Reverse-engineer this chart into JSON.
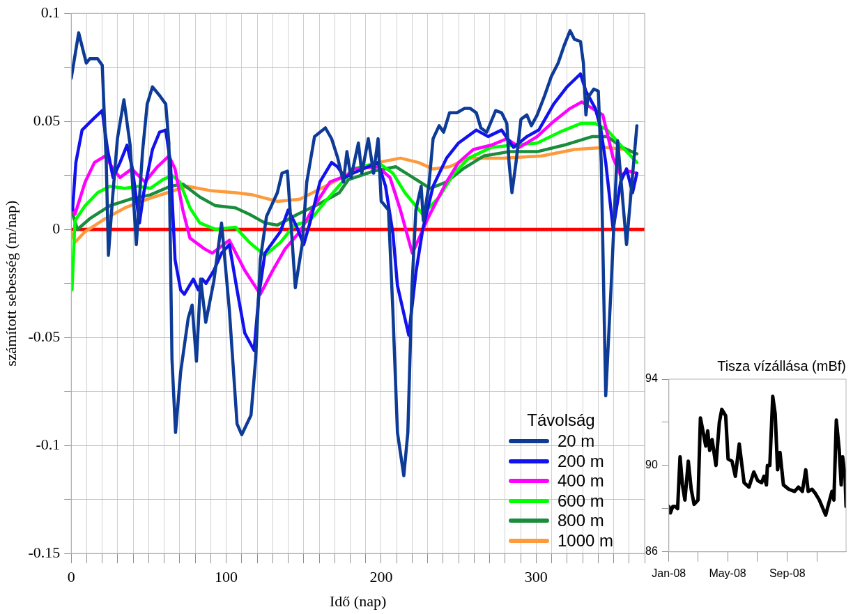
{
  "chart_data": [
    {
      "type": "line",
      "xlabel": "Idő (nap)",
      "ylabel": "számított sebesség (m/nap)",
      "legend_title": "Távolság",
      "legend": "bottom right",
      "grid": true,
      "marker": "none",
      "line_style": "solid",
      "xlim": [
        0,
        370
      ],
      "xticks": [
        0,
        {
          "value": 10,
          "label": null
        },
        {
          "value": 20,
          "label": null
        },
        {
          "value": 30,
          "label": null
        },
        {
          "value": 40,
          "label": null
        },
        {
          "value": 50,
          "label": null
        },
        {
          "value": 60,
          "label": null
        },
        {
          "value": 70,
          "label": null
        },
        {
          "value": 80,
          "label": null
        },
        {
          "value": 90,
          "label": null
        },
        100,
        {
          "value": 110,
          "label": null
        },
        {
          "value": 120,
          "label": null
        },
        {
          "value": 130,
          "label": null
        },
        {
          "value": 140,
          "label": null
        },
        {
          "value": 150,
          "label": null
        },
        {
          "value": 160,
          "label": null
        },
        {
          "value": 170,
          "label": null
        },
        {
          "value": 180,
          "label": null
        },
        {
          "value": 190,
          "label": null
        },
        200,
        {
          "value": 210,
          "label": null
        },
        {
          "value": 220,
          "label": null
        },
        {
          "value": 230,
          "label": null
        },
        {
          "value": 240,
          "label": null
        },
        {
          "value": 250,
          "label": null
        },
        {
          "value": 260,
          "label": null
        },
        {
          "value": 270,
          "label": null
        },
        {
          "value": 280,
          "label": null
        },
        {
          "value": 290,
          "label": null
        },
        300,
        {
          "value": 310,
          "label": null
        },
        {
          "value": 320,
          "label": null
        },
        {
          "value": 330,
          "label": null
        },
        {
          "value": 340,
          "label": null
        },
        {
          "value": 350,
          "label": null
        },
        {
          "value": 360,
          "label": null
        },
        {
          "value": 370,
          "label": null
        }
      ],
      "ylim": [
        -0.15,
        0.1
      ],
      "yticks": [
        -0.15,
        {
          "value": -0.125,
          "label": null
        },
        -0.1,
        {
          "value": -0.075,
          "label": null
        },
        -0.05,
        {
          "value": -0.025,
          "label": null
        },
        0,
        {
          "value": 0.025,
          "label": null
        },
        0.05,
        {
          "value": 0.075,
          "label": null
        },
        0.1
      ],
      "ref_lines": [
        {
          "axis": "y",
          "value": 0,
          "color": "#ff0000"
        }
      ],
      "series": [
        {
          "name": "20 m",
          "color": "#0d3b96",
          "x": [
            0,
            4.8,
            9.7,
            12,
            17,
            20,
            22.6,
            24,
            26.6,
            29.8,
            34,
            38,
            42,
            46,
            49,
            52.4,
            57,
            61,
            63,
            65,
            67.3,
            70.6,
            75.5,
            78,
            80.8,
            83.5,
            86.8,
            92,
            97,
            102,
            107,
            110,
            116,
            119,
            122,
            126,
            133,
            136,
            139.5,
            144.6,
            149,
            152,
            157,
            164,
            168,
            172,
            175.6,
            177.9,
            180.5,
            185.3,
            187.5,
            191.7,
            195.1,
            198,
            200,
            201.3,
            204.7,
            207.5,
            210.5,
            214.6,
            217.2,
            219.9,
            222.4,
            225.8,
            227.2,
            230.7,
            233.5,
            237.4,
            240.3,
            244.1,
            248.9,
            253.7,
            257.5,
            261.4,
            264.3,
            268.1,
            273.9,
            277.7,
            281.1,
            282.5,
            284.4,
            287,
            290.2,
            294,
            296.9,
            300.7,
            305.5,
            309.9,
            314.2,
            318,
            321.9,
            324.7,
            328.6,
            330.5,
            332.1,
            333.4,
            337.2,
            340.1,
            342,
            344.9,
            348.4,
            352.6,
            358.3,
            365
          ],
          "values": [
            0.07,
            0.091,
            0.077,
            0.079,
            0.079,
            0.076,
            0.031,
            -0.012,
            0.014,
            0.042,
            0.06,
            0.039,
            -0.007,
            0.036,
            0.058,
            0.066,
            0.062,
            0.058,
            0.04,
            -0.06,
            -0.094,
            -0.066,
            -0.041,
            -0.035,
            -0.061,
            -0.023,
            -0.043,
            -0.024,
            0.003,
            -0.037,
            -0.09,
            -0.095,
            -0.086,
            -0.06,
            -0.014,
            0.006,
            0.017,
            0.026,
            0.027,
            -0.027,
            -0.007,
            0.022,
            0.043,
            0.047,
            0.042,
            0.033,
            0.022,
            0.036,
            0.024,
            0.04,
            0.026,
            0.042,
            0.026,
            0.042,
            0.013,
            0.012,
            0.009,
            -0.037,
            -0.094,
            -0.114,
            -0.094,
            -0.026,
            0.009,
            0.02,
            0.004,
            0.02,
            0.042,
            0.048,
            0.045,
            0.054,
            0.054,
            0.056,
            0.056,
            0.054,
            0.047,
            0.045,
            0.055,
            0.054,
            0.049,
            0.031,
            0.017,
            0.031,
            0.051,
            0.053,
            0.048,
            0.053,
            0.062,
            0.071,
            0.077,
            0.085,
            0.092,
            0.088,
            0.087,
            0.077,
            0.053,
            0.061,
            0.065,
            0.064,
            0.031,
            -0.077,
            -0.026,
            0.041,
            -0.007,
            0.048
          ]
        },
        {
          "name": "200 m",
          "color": "#1212ee",
          "x": [
            0.8,
            3,
            7,
            14,
            20,
            23.4,
            27,
            31.5,
            36,
            39.5,
            44,
            46.8,
            52.4,
            57,
            61,
            64,
            67,
            70.6,
            73,
            78.8,
            82,
            84.6,
            87,
            92,
            97,
            102,
            107,
            112,
            118,
            121,
            125,
            135,
            140,
            145,
            150,
            154,
            160.5,
            168,
            171.8,
            176.6,
            181.7,
            198,
            202.8,
            207.6,
            210.5,
            217.8,
            222.4,
            226.8,
            233.5,
            242.2,
            249.9,
            261.4,
            269,
            277.7,
            285.4,
            294,
            301.7,
            311.3,
            319.9,
            328.6,
            332.1,
            338.2,
            341.6,
            344.9,
            349.7,
            354.5,
            358.3,
            362.2,
            365
          ],
          "values": [
            0.009,
            0.031,
            0.046,
            0.051,
            0.055,
            0.037,
            0.024,
            0.031,
            0.039,
            0.028,
            0.003,
            0.017,
            0.037,
            0.045,
            0.046,
            0.031,
            -0.014,
            -0.028,
            -0.03,
            -0.023,
            -0.028,
            -0.023,
            -0.025,
            -0.019,
            -0.011,
            -0.007,
            -0.028,
            -0.048,
            -0.056,
            -0.031,
            -0.011,
            -0.001,
            0.009,
            0.002,
            -0.007,
            0.003,
            0.022,
            0.031,
            0.029,
            0.024,
            0.026,
            0.031,
            0.02,
            -0.002,
            -0.026,
            -0.049,
            -0.02,
            0,
            0.02,
            0.033,
            0.04,
            0.046,
            0.043,
            0.046,
            0.038,
            0.043,
            0.046,
            0.058,
            0.066,
            0.072,
            0.064,
            0.056,
            0.047,
            0.031,
            0,
            0.022,
            0.028,
            0.017,
            0.026
          ]
        },
        {
          "name": "400 m",
          "color": "#ff00ff",
          "x": [
            0.8,
            2.4,
            9,
            15,
            22,
            27,
            31.5,
            39,
            47.6,
            55.6,
            63,
            67,
            72,
            76.6,
            86,
            91,
            102,
            112,
            122,
            130,
            138,
            147.6,
            157,
            167,
            178,
            181.7,
            198,
            205.7,
            212.4,
            220.1,
            230.7,
            242.2,
            249.9,
            259.5,
            271,
            281.1,
            289.2,
            300.7,
            311.3,
            321.9,
            329.5,
            336.3,
            343,
            349.7,
            354.5,
            359.3,
            365
          ],
          "values": [
            0.01,
            0.007,
            0.022,
            0.031,
            0.034,
            0.028,
            0.024,
            0.028,
            0.022,
            0.029,
            0.034,
            0.028,
            0.009,
            -0.004,
            -0.009,
            -0.011,
            -0.005,
            -0.019,
            -0.03,
            -0.019,
            -0.009,
            -0.001,
            0.011,
            0.022,
            0.025,
            0.028,
            0.029,
            0.024,
            0.009,
            -0.011,
            0.006,
            0.022,
            0.031,
            0.037,
            0.039,
            0.042,
            0.038,
            0.043,
            0.05,
            0.056,
            0.059,
            0.056,
            0.053,
            0.033,
            0.025,
            0.027,
            0.026
          ]
        },
        {
          "name": "600 m",
          "color": "#00ff00",
          "x": [
            0.5,
            2.4,
            9,
            17,
            25,
            34.7,
            43,
            51,
            59,
            65,
            70,
            76.6,
            83,
            93,
            106,
            115,
            125,
            135,
            144,
            154,
            164,
            175,
            181.7,
            198,
            207.6,
            215.3,
            226.8,
            237.4,
            247,
            256.6,
            271,
            285.4,
            300.7,
            315.1,
            328.6,
            338.2,
            345.9,
            354.5,
            365
          ],
          "values": [
            -0.028,
            0.004,
            0.011,
            0.017,
            0.02,
            0.019,
            0.02,
            0.019,
            0.023,
            0.025,
            0.022,
            0.01,
            0.003,
            0,
            0.001,
            -0.006,
            -0.012,
            -0.006,
            0.002,
            0.004,
            0.013,
            0.022,
            0.028,
            0.031,
            0.026,
            0.017,
            0.007,
            0.015,
            0.026,
            0.033,
            0.038,
            0.039,
            0.04,
            0.045,
            0.049,
            0.049,
            0.046,
            0.039,
            0.031
          ]
        },
        {
          "name": "800 m",
          "color": "#1a8c3c",
          "x": [
            0.5,
            4,
            12,
            25,
            38,
            51,
            64,
            72,
            83,
            93,
            106,
            115,
            125,
            133,
            146,
            160.5,
            173,
            178.8,
            195.1,
            209.5,
            220.6,
            231.6,
            242.2,
            252.7,
            266.2,
            282.5,
            300.7,
            318,
            336.3,
            345.9,
            355.5,
            365
          ],
          "values": [
            0.008,
            0,
            0.005,
            0.011,
            0.014,
            0.016,
            0.02,
            0.021,
            0.015,
            0.011,
            0.01,
            0.007,
            0.003,
            0.002,
            0.007,
            0.012,
            0.017,
            0.023,
            0.027,
            0.029,
            0.024,
            0.019,
            0.022,
            0.028,
            0.034,
            0.036,
            0.036,
            0.039,
            0.043,
            0.043,
            0.038,
            0.035
          ]
        },
        {
          "name": "1000 m",
          "color": "#ff9a3c",
          "x": [
            0.5,
            2.4,
            9,
            22,
            34.7,
            49,
            62,
            75,
            89.5,
            106,
            117,
            133,
            147.6,
            164,
            177,
            181.7,
            198,
            212.4,
            224,
            233.5,
            244.1,
            256.6,
            278.7,
            303.6,
            324.7,
            344.5,
            357.4,
            365
          ],
          "values": [
            -0.002,
            -0.006,
            -0.001,
            0.005,
            0.01,
            0.014,
            0.017,
            0.02,
            0.018,
            0.017,
            0.016,
            0.013,
            0.014,
            0.02,
            0.025,
            0.027,
            0.031,
            0.033,
            0.031,
            0.028,
            0.029,
            0.033,
            0.033,
            0.034,
            0.037,
            0.038,
            0.037,
            0.035
          ]
        }
      ]
    },
    {
      "type": "line",
      "title": "Tisza vízállása (mBf)",
      "grid": false,
      "marker": "none",
      "xlim": [
        "2008-01-01",
        "2008-12-31"
      ],
      "xticks": [
        {
          "value": "2008-01",
          "label": "Jan-08"
        },
        {
          "value": "2008-03",
          "label": null
        },
        {
          "value": "2008-05",
          "label": "May-08"
        },
        {
          "value": "2008-07",
          "label": null
        },
        {
          "value": "2008-09",
          "label": "Sep-08"
        },
        {
          "value": "2008-11",
          "label": null
        }
      ],
      "ylim": [
        86,
        94
      ],
      "yticks": [
        86,
        {
          "value": 88,
          "label": null
        },
        90,
        {
          "value": 92,
          "label": null
        },
        94
      ],
      "series": [
        {
          "color": "#000000",
          "x": [
            "2008-01-01",
            "2008-01-04",
            "2008-01-09",
            "2008-01-14",
            "2008-01-19",
            "2008-01-24",
            "2008-01-29",
            "2008-02-03",
            "2008-02-10",
            "2008-02-16",
            "2008-02-22",
            "2008-03-01",
            "2008-03-06",
            "2008-03-12",
            "2008-03-17",
            "2008-03-21",
            "2008-03-25",
            "2008-03-30",
            "2008-04-07",
            "2008-04-14",
            "2008-04-19",
            "2008-04-27",
            "2008-05-02",
            "2008-05-10",
            "2008-05-17",
            "2008-05-25",
            "2008-06-04",
            "2008-06-14",
            "2008-06-24",
            "2008-07-02",
            "2008-07-10",
            "2008-07-15",
            "2008-07-20",
            "2008-07-22",
            "2008-07-27",
            "2008-08-02",
            "2008-08-07",
            "2008-08-12",
            "2008-08-17",
            "2008-08-24",
            "2008-09-04",
            "2008-09-16",
            "2008-09-24",
            "2008-10-02",
            "2008-10-09",
            "2008-10-14",
            "2008-10-22",
            "2008-10-29",
            "2008-11-06",
            "2008-11-19",
            "2008-11-26",
            "2008-12-02",
            "2008-12-06",
            "2008-12-11",
            "2008-12-17",
            "2008-12-21",
            "2008-12-24",
            "2008-12-29",
            "2008-12-31"
          ],
          "values": [
            88.1,
            87.8,
            88.1,
            88.1,
            88.0,
            90.4,
            89.1,
            88.4,
            90.2,
            88.9,
            88.2,
            88.4,
            92.2,
            91.5,
            90.9,
            91.6,
            90.7,
            91.2,
            90.0,
            92.0,
            92.6,
            92.3,
            90.3,
            90.2,
            89.5,
            91.0,
            89.2,
            89.0,
            89.7,
            89.3,
            89.2,
            89.5,
            89.1,
            90.0,
            90.0,
            93.2,
            92.4,
            89.8,
            90.6,
            89.1,
            88.9,
            88.8,
            89.0,
            88.8,
            89.8,
            88.8,
            88.9,
            88.7,
            88.4,
            87.7,
            88.3,
            88.8,
            88.4,
            92.1,
            90.7,
            89.1,
            90.4,
            89.5,
            88.1
          ]
        }
      ]
    }
  ]
}
